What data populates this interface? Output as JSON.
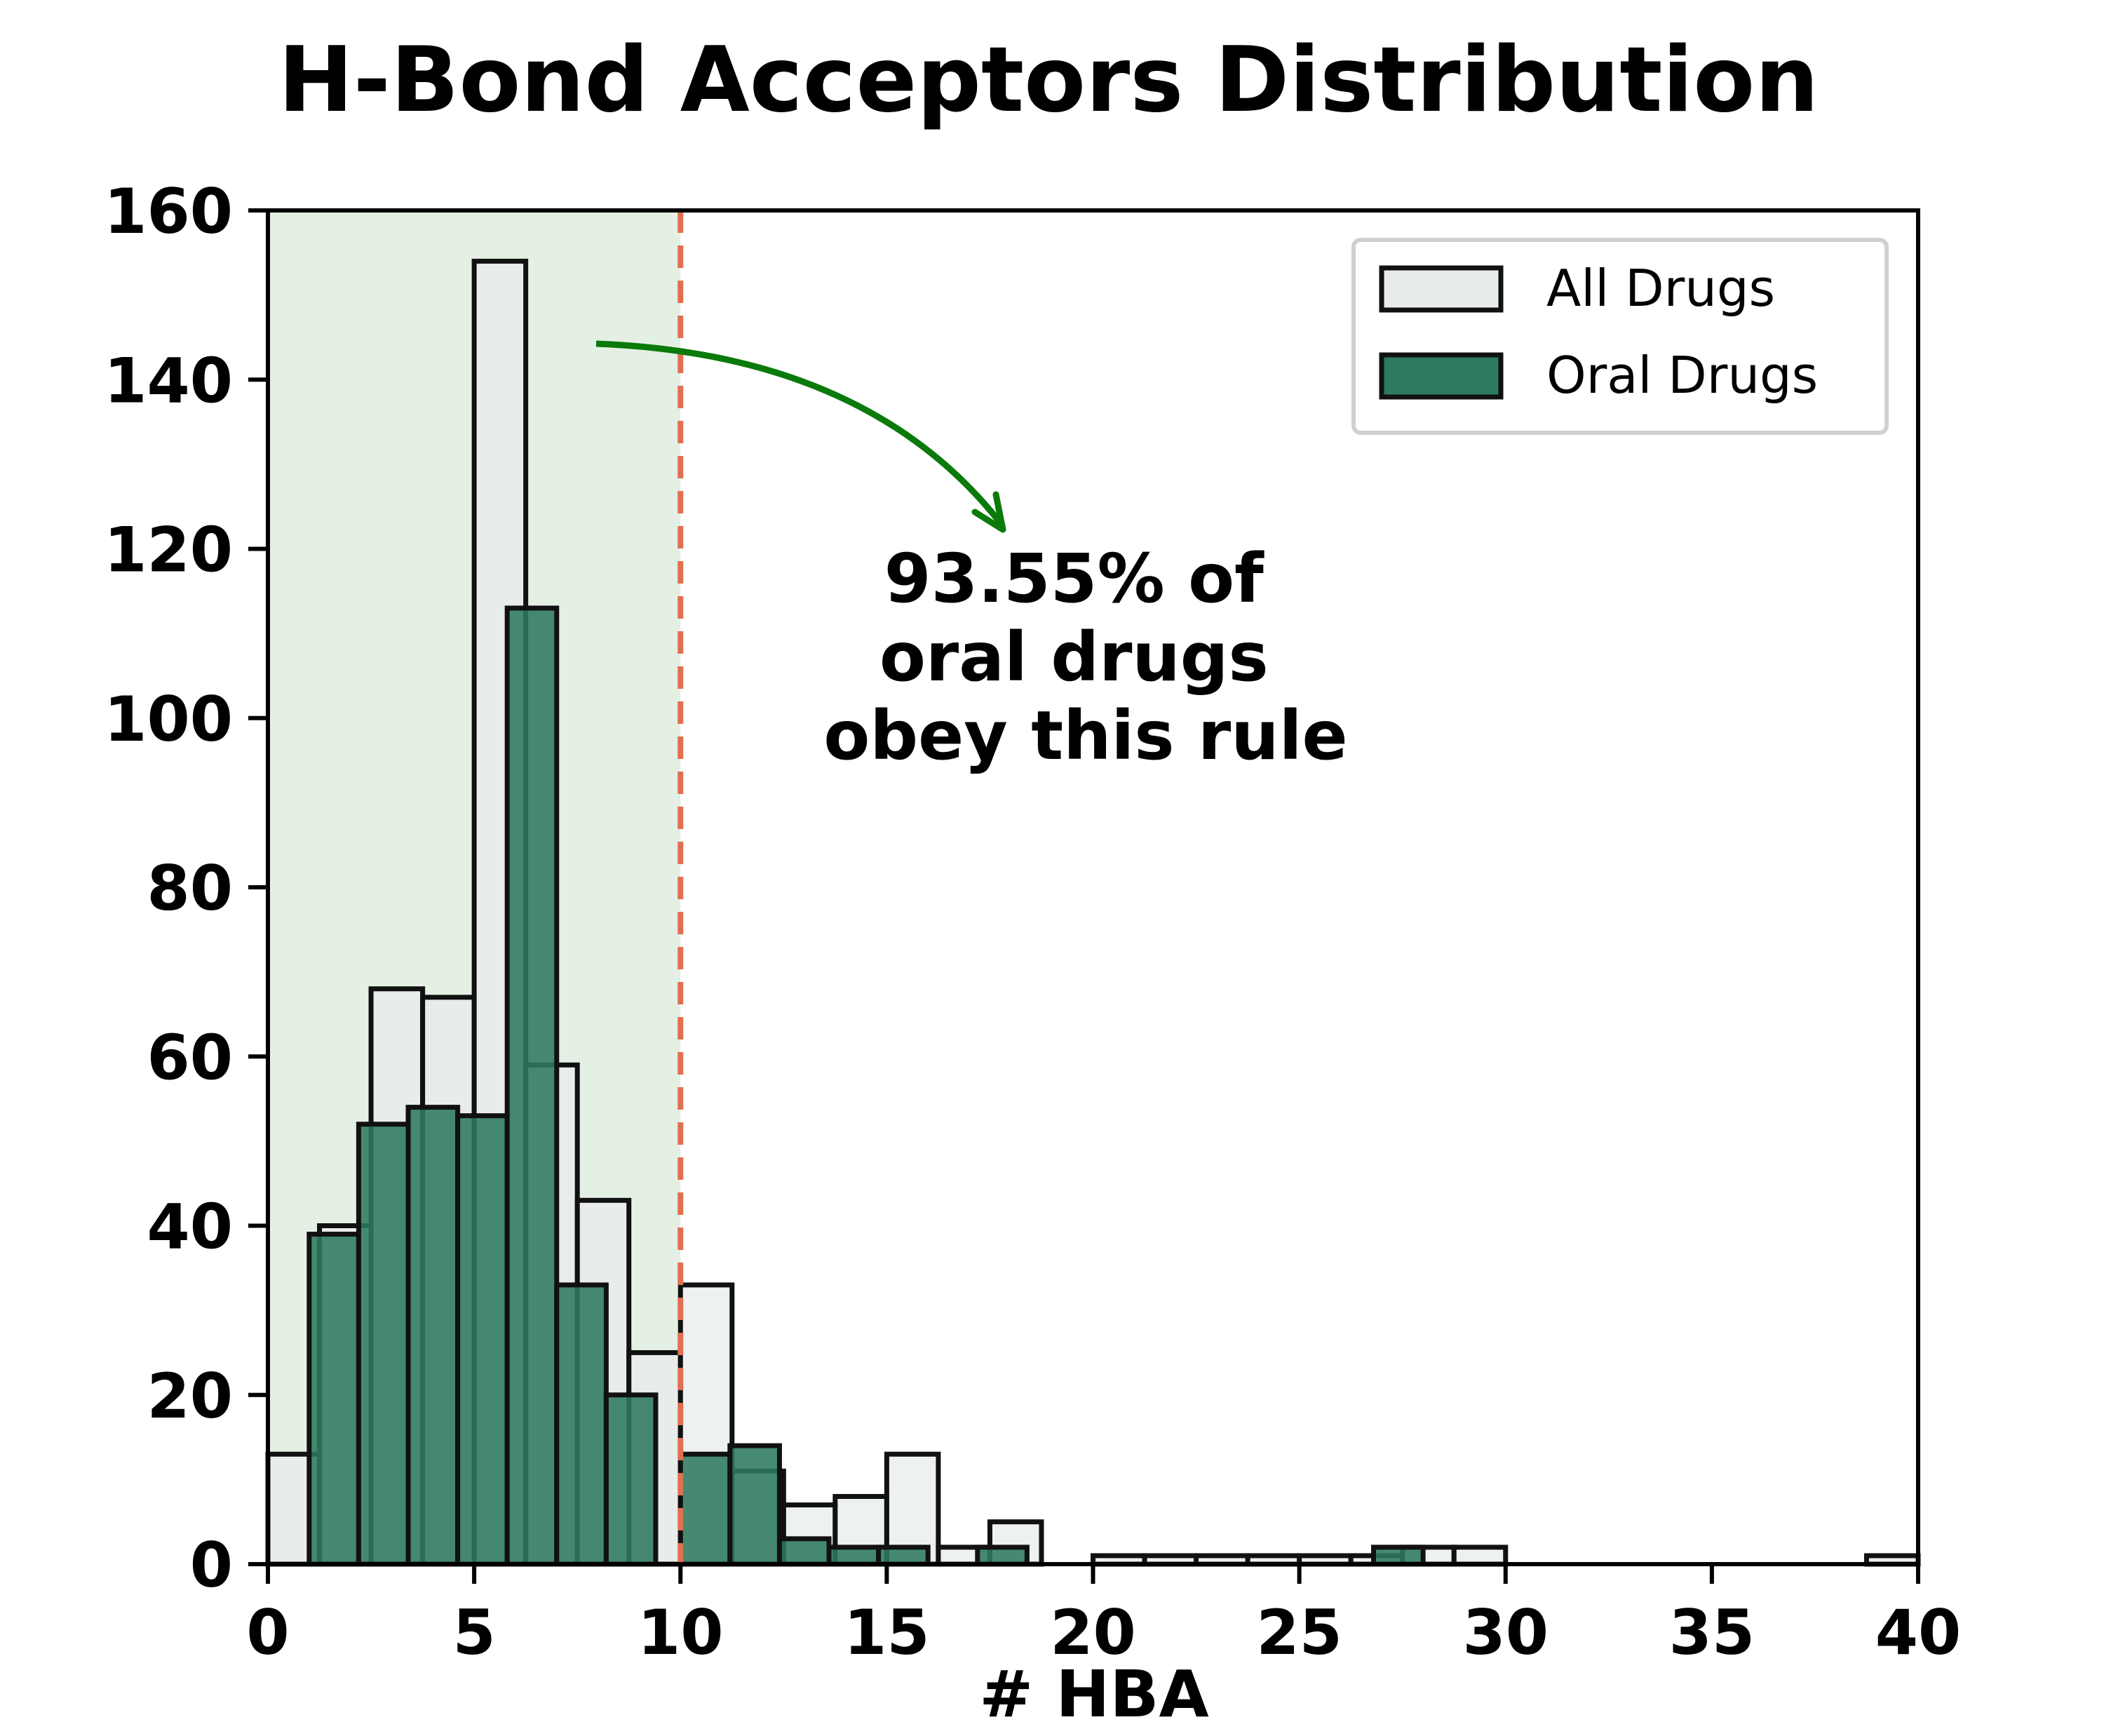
{
  "chart_data": {
    "type": "bar",
    "title": "H-Bond Acceptors Distribution",
    "xlabel": "# HBA",
    "ylabel": "",
    "xlim": [
      0,
      40
    ],
    "ylim": [
      0,
      160
    ],
    "xticks": [
      0,
      5,
      10,
      15,
      20,
      25,
      30,
      35,
      40
    ],
    "yticks": [
      0,
      20,
      40,
      60,
      80,
      100,
      120,
      140,
      160
    ],
    "grid": false,
    "legend_position": "top-right",
    "highlight_region": {
      "x_from": 0,
      "x_to": 10,
      "color": "#e5f0e5"
    },
    "threshold_line": {
      "x": 10,
      "style": "dashed",
      "color": "#e07050"
    },
    "annotation": {
      "lines": [
        "93.55% of",
        "oral drugs",
        "obey this rule"
      ]
    },
    "series": [
      {
        "name": "All Drugs",
        "color": "#e8ecec",
        "bin_width": 1.25,
        "bins": [
          {
            "x0": 0.0,
            "value": 13
          },
          {
            "x0": 1.25,
            "value": 40
          },
          {
            "x0": 2.5,
            "value": 68
          },
          {
            "x0": 3.75,
            "value": 67
          },
          {
            "x0": 5.0,
            "value": 154
          },
          {
            "x0": 6.25,
            "value": 59
          },
          {
            "x0": 7.5,
            "value": 43
          },
          {
            "x0": 8.75,
            "value": 25
          },
          {
            "x0": 10.0,
            "value": 33
          },
          {
            "x0": 11.25,
            "value": 11
          },
          {
            "x0": 12.5,
            "value": 7
          },
          {
            "x0": 13.75,
            "value": 8
          },
          {
            "x0": 15.0,
            "value": 13
          },
          {
            "x0": 16.25,
            "value": 2
          },
          {
            "x0": 17.5,
            "value": 5
          },
          {
            "x0": 20.0,
            "value": 1
          },
          {
            "x0": 21.25,
            "value": 1
          },
          {
            "x0": 22.5,
            "value": 1
          },
          {
            "x0": 23.75,
            "value": 1
          },
          {
            "x0": 25.0,
            "value": 1
          },
          {
            "x0": 26.25,
            "value": 1
          },
          {
            "x0": 27.5,
            "value": 2
          },
          {
            "x0": 28.75,
            "value": 2
          },
          {
            "x0": 38.75,
            "value": 1
          }
        ]
      },
      {
        "name": "Oral Drugs",
        "color": "#2d7a5e",
        "bin_width": 1.2,
        "bins": [
          {
            "x0": 1.0,
            "value": 39
          },
          {
            "x0": 2.2,
            "value": 52
          },
          {
            "x0": 3.4,
            "value": 54
          },
          {
            "x0": 4.6,
            "value": 53
          },
          {
            "x0": 5.8,
            "value": 113
          },
          {
            "x0": 7.0,
            "value": 33
          },
          {
            "x0": 8.2,
            "value": 20
          },
          {
            "x0": 9.4,
            "value": 0
          },
          {
            "x0": 10.0,
            "value": 13
          },
          {
            "x0": 11.2,
            "value": 14
          },
          {
            "x0": 12.4,
            "value": 3
          },
          {
            "x0": 13.6,
            "value": 2
          },
          {
            "x0": 14.8,
            "value": 2
          },
          {
            "x0": 17.2,
            "value": 2
          },
          {
            "x0": 26.8,
            "value": 2
          }
        ]
      }
    ]
  }
}
